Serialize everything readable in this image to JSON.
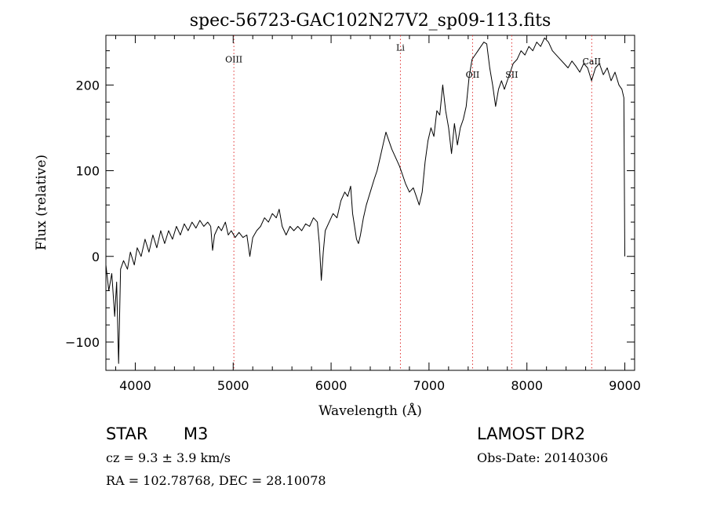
{
  "chart_data": {
    "type": "line",
    "title": "spec-56723-GAC102N27V2_sp09-113.fits",
    "xlabel": "Wavelength (Å)",
    "ylabel": "Flux (relative)",
    "xlim": [
      3700,
      9100
    ],
    "ylim": [
      -133,
      258
    ],
    "xticks": [
      4000,
      5000,
      6000,
      7000,
      8000,
      9000
    ],
    "yticks": [
      -100,
      0,
      100,
      200
    ],
    "x_minor_step": 200,
    "y_minor_step": 20,
    "series": [
      {
        "color": "#000000",
        "points": [
          [
            3700,
            -10
          ],
          [
            3730,
            -40
          ],
          [
            3760,
            -20
          ],
          [
            3790,
            -70
          ],
          [
            3810,
            -30
          ],
          [
            3830,
            -125
          ],
          [
            3850,
            -15
          ],
          [
            3880,
            -5
          ],
          [
            3920,
            -15
          ],
          [
            3950,
            5
          ],
          [
            3990,
            -10
          ],
          [
            4020,
            10
          ],
          [
            4060,
            0
          ],
          [
            4100,
            20
          ],
          [
            4140,
            5
          ],
          [
            4180,
            25
          ],
          [
            4220,
            10
          ],
          [
            4260,
            30
          ],
          [
            4300,
            15
          ],
          [
            4340,
            30
          ],
          [
            4380,
            20
          ],
          [
            4420,
            35
          ],
          [
            4460,
            25
          ],
          [
            4500,
            38
          ],
          [
            4540,
            30
          ],
          [
            4580,
            40
          ],
          [
            4620,
            33
          ],
          [
            4660,
            42
          ],
          [
            4700,
            35
          ],
          [
            4740,
            40
          ],
          [
            4770,
            35
          ],
          [
            4790,
            7
          ],
          [
            4810,
            25
          ],
          [
            4850,
            35
          ],
          [
            4880,
            30
          ],
          [
            4920,
            40
          ],
          [
            4950,
            25
          ],
          [
            4980,
            30
          ],
          [
            5020,
            22
          ],
          [
            5060,
            28
          ],
          [
            5100,
            22
          ],
          [
            5140,
            25
          ],
          [
            5170,
            0
          ],
          [
            5200,
            22
          ],
          [
            5240,
            30
          ],
          [
            5280,
            35
          ],
          [
            5320,
            45
          ],
          [
            5360,
            40
          ],
          [
            5400,
            50
          ],
          [
            5440,
            45
          ],
          [
            5470,
            55
          ],
          [
            5500,
            35
          ],
          [
            5540,
            25
          ],
          [
            5580,
            35
          ],
          [
            5620,
            30
          ],
          [
            5660,
            35
          ],
          [
            5700,
            30
          ],
          [
            5740,
            38
          ],
          [
            5780,
            35
          ],
          [
            5820,
            45
          ],
          [
            5860,
            40
          ],
          [
            5880,
            15
          ],
          [
            5900,
            -28
          ],
          [
            5920,
            5
          ],
          [
            5940,
            30
          ],
          [
            5980,
            40
          ],
          [
            6020,
            50
          ],
          [
            6060,
            45
          ],
          [
            6100,
            65
          ],
          [
            6140,
            75
          ],
          [
            6170,
            70
          ],
          [
            6200,
            82
          ],
          [
            6220,
            50
          ],
          [
            6240,
            35
          ],
          [
            6260,
            20
          ],
          [
            6280,
            15
          ],
          [
            6300,
            25
          ],
          [
            6330,
            45
          ],
          [
            6360,
            60
          ],
          [
            6400,
            75
          ],
          [
            6440,
            90
          ],
          [
            6470,
            100
          ],
          [
            6500,
            115
          ],
          [
            6530,
            130
          ],
          [
            6560,
            145
          ],
          [
            6590,
            135
          ],
          [
            6620,
            125
          ],
          [
            6660,
            115
          ],
          [
            6700,
            105
          ],
          [
            6730,
            95
          ],
          [
            6760,
            85
          ],
          [
            6800,
            75
          ],
          [
            6840,
            80
          ],
          [
            6870,
            70
          ],
          [
            6900,
            60
          ],
          [
            6930,
            75
          ],
          [
            6960,
            110
          ],
          [
            6990,
            135
          ],
          [
            7020,
            150
          ],
          [
            7050,
            140
          ],
          [
            7080,
            170
          ],
          [
            7110,
            165
          ],
          [
            7140,
            200
          ],
          [
            7170,
            170
          ],
          [
            7200,
            150
          ],
          [
            7230,
            120
          ],
          [
            7260,
            155
          ],
          [
            7290,
            130
          ],
          [
            7320,
            150
          ],
          [
            7350,
            160
          ],
          [
            7380,
            175
          ],
          [
            7410,
            210
          ],
          [
            7440,
            230
          ],
          [
            7470,
            235
          ],
          [
            7500,
            240
          ],
          [
            7530,
            245
          ],
          [
            7560,
            250
          ],
          [
            7590,
            248
          ],
          [
            7620,
            220
          ],
          [
            7650,
            200
          ],
          [
            7680,
            175
          ],
          [
            7710,
            195
          ],
          [
            7740,
            205
          ],
          [
            7770,
            195
          ],
          [
            7800,
            205
          ],
          [
            7830,
            215
          ],
          [
            7860,
            225
          ],
          [
            7900,
            230
          ],
          [
            7940,
            240
          ],
          [
            7980,
            235
          ],
          [
            8020,
            245
          ],
          [
            8060,
            240
          ],
          [
            8100,
            250
          ],
          [
            8140,
            245
          ],
          [
            8180,
            255
          ],
          [
            8220,
            250
          ],
          [
            8260,
            240
          ],
          [
            8300,
            235
          ],
          [
            8340,
            230
          ],
          [
            8380,
            225
          ],
          [
            8420,
            220
          ],
          [
            8460,
            228
          ],
          [
            8500,
            222
          ],
          [
            8540,
            215
          ],
          [
            8580,
            225
          ],
          [
            8620,
            220
          ],
          [
            8660,
            205
          ],
          [
            8700,
            220
          ],
          [
            8740,
            225
          ],
          [
            8780,
            212
          ],
          [
            8820,
            220
          ],
          [
            8860,
            205
          ],
          [
            8900,
            215
          ],
          [
            8940,
            200
          ],
          [
            8970,
            195
          ],
          [
            8990,
            185
          ],
          [
            9000,
            0
          ]
        ]
      }
    ],
    "annotations": [
      {
        "label": "OIII",
        "x": 5007,
        "y": 230
      },
      {
        "label": "Li",
        "x": 6708,
        "y": 244
      },
      {
        "label": "OII",
        "x": 7445,
        "y": 212
      },
      {
        "label": "SII",
        "x": 7845,
        "y": 212
      },
      {
        "label": "CaII",
        "x": 8662,
        "y": 228
      }
    ],
    "grid": false,
    "legend": "none"
  },
  "info": {
    "obj_type": "STAR",
    "subclass": "M3",
    "cz": "cz = 9.3 ± 3.9 km/s",
    "coords": "RA = 102.78768, DEC =  28.10078",
    "survey": "LAMOST DR2",
    "obs_date": "Obs-Date: 20140306"
  }
}
